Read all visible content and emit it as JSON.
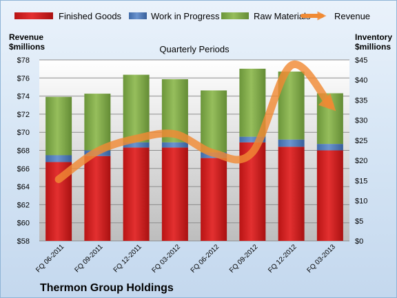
{
  "chart_data": {
    "type": "bar",
    "title": "Quarterly Periods",
    "company": "Thermon Group Holdings",
    "categories": [
      "FQ 06-2011",
      "FQ 09-2011",
      "FQ 12-2011",
      "FQ 03-2012",
      "FQ 06-2012",
      "FQ 09-2012",
      "FQ 12-2012",
      "FQ 03-2013"
    ],
    "series": [
      {
        "name": "Finished Goods",
        "axis": "right",
        "color": "#d21e1e",
        "values": [
          19.6,
          21.1,
          23.2,
          23.2,
          20.6,
          24.5,
          23.4,
          22.5
        ]
      },
      {
        "name": "Work in Progress",
        "axis": "right",
        "color": "#4f7fc0",
        "values": [
          1.7,
          1.4,
          1.3,
          1.3,
          1.4,
          1.4,
          1.8,
          1.6
        ]
      },
      {
        "name": "Raw Materials",
        "axis": "right",
        "color": "#7fa947",
        "values": [
          14.5,
          14.1,
          16.8,
          15.7,
          15.4,
          16.9,
          16.9,
          12.6
        ]
      },
      {
        "name": "Revenue",
        "axis": "left",
        "type": "line",
        "color": "#f08a34",
        "values": [
          64.8,
          67.9,
          69.3,
          69.8,
          67.7,
          67.8,
          77.4,
          73.0
        ]
      }
    ],
    "left_axis": {
      "label_line1": "Revenue",
      "label_line2": "$millions",
      "min": 58,
      "max": 78,
      "step": 2,
      "ticks": [
        "$58",
        "$60",
        "$62",
        "$64",
        "$66",
        "$68",
        "$70",
        "$72",
        "$74",
        "$76",
        "$78"
      ]
    },
    "right_axis": {
      "label_line1": "Inventory",
      "label_line2": "$millions",
      "min": 0,
      "max": 45,
      "step": 5,
      "ticks": [
        "$0",
        "$5",
        "$10",
        "$15",
        "$20",
        "$25",
        "$30",
        "$35",
        "$40",
        "$45"
      ]
    },
    "legend_position": "top",
    "grid": true
  }
}
